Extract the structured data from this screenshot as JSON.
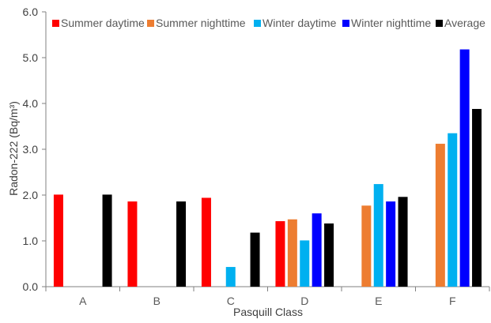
{
  "chart_data": {
    "type": "bar",
    "title": "",
    "xlabel": "Pasquill Class",
    "ylabel": "Radon-222 (Bq/m³)",
    "ylim": [
      0,
      6
    ],
    "y_ticks": [
      "0.0",
      "1.0",
      "2.0",
      "3.0",
      "4.0",
      "5.0",
      "6.0"
    ],
    "categories": [
      "A",
      "B",
      "C",
      "D",
      "E",
      "F"
    ],
    "legend_position": "top",
    "grid": false,
    "series": [
      {
        "name": "Summer daytime",
        "color": "#ff0000",
        "values": [
          2.01,
          1.86,
          1.94,
          1.43,
          null,
          null
        ]
      },
      {
        "name": "Summer nighttime",
        "color": "#ed7d31",
        "values": [
          null,
          null,
          null,
          1.47,
          1.77,
          3.12
        ]
      },
      {
        "name": "Winter daytime",
        "color": "#00b0f0",
        "values": [
          null,
          null,
          0.43,
          1.01,
          2.24,
          3.35
        ]
      },
      {
        "name": "Winter nighttime",
        "color": "#0000ff",
        "values": [
          null,
          null,
          null,
          1.6,
          1.86,
          5.18
        ]
      },
      {
        "name": "Average",
        "color": "#000000",
        "values": [
          2.01,
          1.86,
          1.18,
          1.38,
          1.96,
          3.88
        ]
      }
    ]
  }
}
